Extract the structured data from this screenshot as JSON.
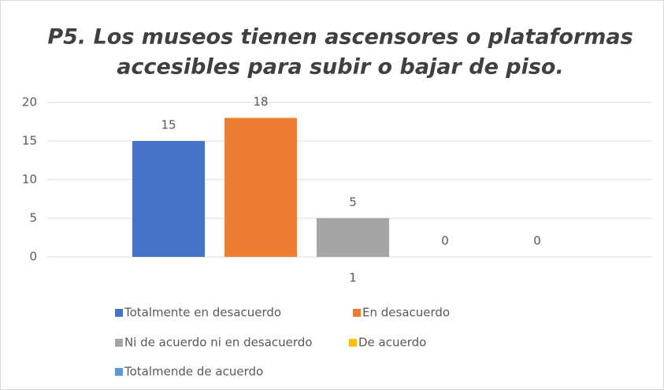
{
  "chart_data": {
    "type": "bar",
    "title": [
      "P5. Los museos tienen ascensores o plataformas",
      "accesibles para subir o bajar de piso."
    ],
    "categories": [
      "1"
    ],
    "series": [
      {
        "name": "Totalmente en desacuerdo",
        "color": "#4472c4",
        "values": [
          15
        ]
      },
      {
        "name": "En desacuerdo",
        "color": "#ed7d31",
        "values": [
          18
        ]
      },
      {
        "name": "Ni de acuerdo ni en desacuerdo",
        "color": "#a5a5a5",
        "values": [
          5
        ]
      },
      {
        "name": "De acuerdo",
        "color": "#ffc000",
        "values": [
          0
        ]
      },
      {
        "name": "Totalmende de acuerdo",
        "color": "#5b9bd5",
        "values": [
          0
        ]
      }
    ],
    "ylim": [
      0,
      20
    ],
    "yticks": [
      0,
      5,
      10,
      15,
      20
    ],
    "grid": true,
    "legend": "bottom"
  }
}
